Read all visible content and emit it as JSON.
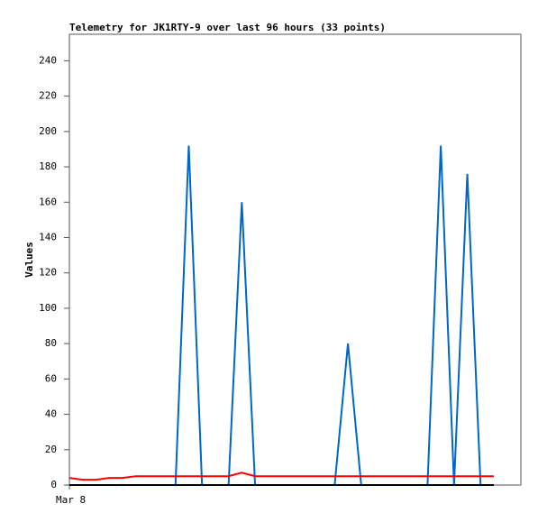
{
  "chart_data": {
    "type": "line",
    "title": "Telemetry for JK1RTY-9 over last 96 hours (33 points)",
    "ylabel": "Values",
    "categories": [
      "Mar 8",
      null,
      null,
      null,
      null,
      null,
      null,
      null,
      null,
      null,
      null,
      null,
      null,
      null,
      null,
      null,
      null,
      null,
      null,
      null,
      null,
      null,
      null,
      null,
      null,
      null,
      null,
      null,
      null,
      null,
      null,
      null,
      null
    ],
    "series": [
      {
        "color": "#0066cc",
        "values": [
          0,
          0,
          0,
          0,
          0,
          0,
          0,
          0,
          0,
          192,
          0,
          0,
          0,
          160,
          0,
          0,
          0,
          0,
          0,
          0,
          0,
          80,
          0,
          0,
          0,
          0,
          0,
          0,
          192,
          0,
          176,
          0,
          0
        ]
      },
      {
        "color": "#ff0000",
        "values": [
          4,
          3,
          3,
          4,
          4,
          5,
          5,
          5,
          5,
          5,
          5,
          5,
          5,
          7,
          5,
          5,
          5,
          5,
          5,
          5,
          5,
          5,
          5,
          5,
          5,
          5,
          5,
          5,
          5,
          5,
          5,
          5,
          5
        ]
      },
      {
        "color": "#000000",
        "values": [
          0,
          0,
          0,
          0,
          0,
          0,
          0,
          0,
          0,
          0,
          0,
          0,
          0,
          0,
          0,
          0,
          0,
          0,
          0,
          0,
          0,
          0,
          0,
          0,
          0,
          0,
          0,
          0,
          0,
          0,
          0,
          0,
          0
        ]
      }
    ],
    "ylim": [
      0,
      255
    ],
    "yticks": [
      0,
      20,
      40,
      60,
      80,
      100,
      120,
      140,
      160,
      180,
      200,
      220,
      240
    ],
    "grid": false
  }
}
